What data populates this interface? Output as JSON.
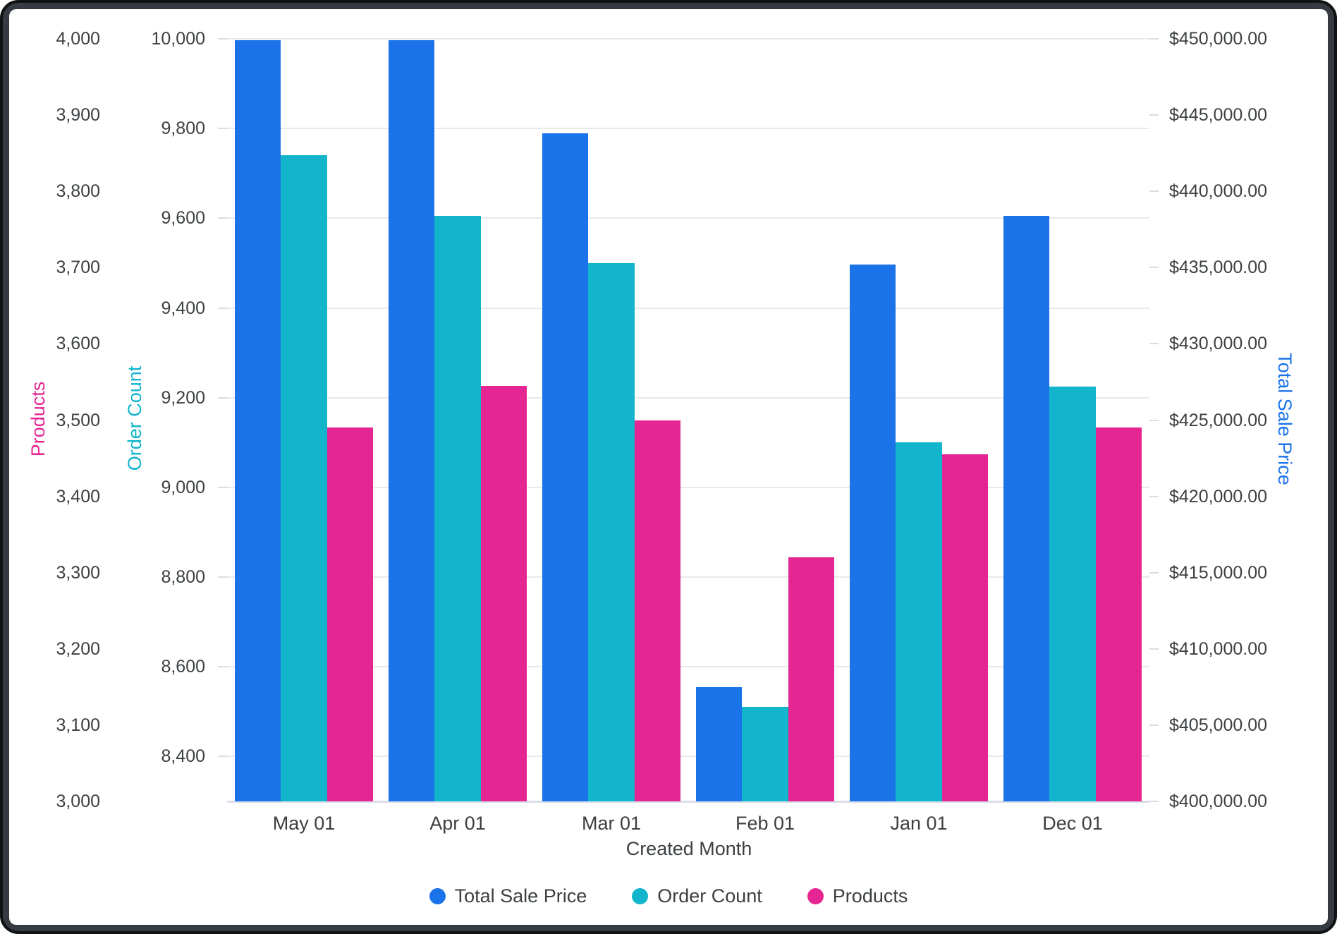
{
  "window": {
    "frame_color": "#363B41",
    "background": "#FFFFFF"
  },
  "colors": {
    "grid": "#E9E9E9",
    "axis_line": "#D9DEE8",
    "tick_mark": "#DADCE0",
    "tick_text": "#3C4043"
  },
  "chart_data": {
    "type": "bar",
    "title": "",
    "categories": [
      "May 01",
      "Apr 01",
      "Mar 01",
      "Feb 01",
      "Jan 01",
      "Dec 01"
    ],
    "xlabel": "Created Month",
    "grid": true,
    "gridline_axis": "order",
    "legend_position": "bottom",
    "series": [
      {
        "name": "Total Sale Price",
        "axis": "price",
        "color": "#1A73E8",
        "values": [
          449900,
          449900,
          443800,
          407500,
          435200,
          438400
        ]
      },
      {
        "name": "Order Count",
        "axis": "order",
        "color": "#12B5CB",
        "values": [
          9740,
          9605,
          9500,
          8510,
          9100,
          9225
        ]
      },
      {
        "name": "Products",
        "axis": "products",
        "color": "#E52592",
        "values": [
          3490,
          3545,
          3500,
          3320,
          3455,
          3490
        ]
      }
    ],
    "axes": {
      "products": {
        "title": "Products",
        "color": "#E52592",
        "side": "left-outer",
        "min": 3000,
        "max": 4000,
        "format": "number",
        "ticks": [
          3000,
          3100,
          3200,
          3300,
          3400,
          3500,
          3600,
          3700,
          3800,
          3900,
          4000
        ]
      },
      "order": {
        "title": "Order Count",
        "color": "#12B5CB",
        "side": "left-inner",
        "min": 8300,
        "max": 10000,
        "format": "number",
        "ticks": [
          8400,
          8600,
          8800,
          9000,
          9200,
          9400,
          9600,
          9800,
          10000
        ]
      },
      "price": {
        "title": "Total Sale Price",
        "color": "#1A73E8",
        "side": "right",
        "min": 400000,
        "max": 450000,
        "format": "currency",
        "ticks": [
          400000,
          405000,
          410000,
          415000,
          420000,
          425000,
          430000,
          435000,
          440000,
          445000,
          450000
        ]
      }
    }
  }
}
